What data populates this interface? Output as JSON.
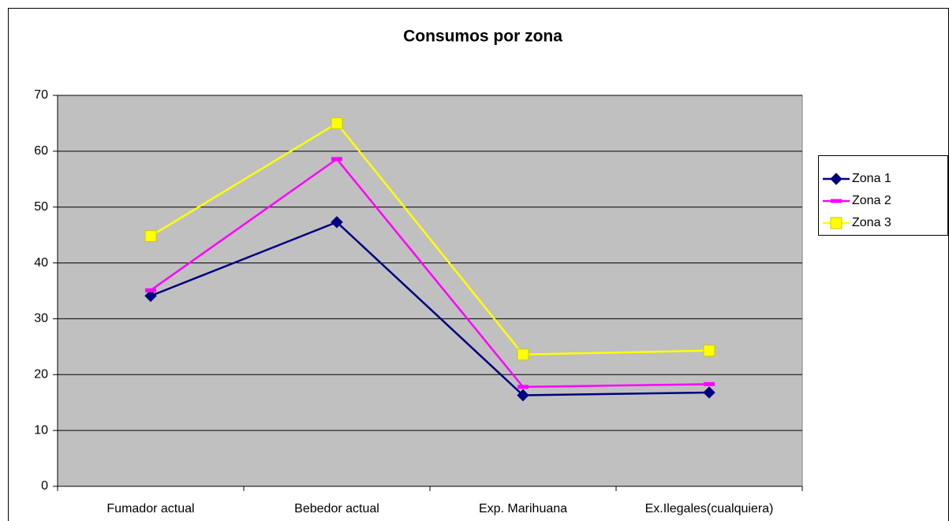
{
  "chart_data": {
    "type": "line",
    "title": "Consumos por zona",
    "categories": [
      "Fumador actual",
      "Bebedor actual",
      "Exp. Marihuana",
      "Ex.Ilegales(cualquiera)"
    ],
    "series": [
      {
        "name": "Zona 1",
        "color": "#000080",
        "marker": "diamond",
        "values": [
          34.1,
          47.3,
          16.3,
          16.8
        ]
      },
      {
        "name": "Zona 2",
        "color": "#ff00ff",
        "marker": "dash",
        "values": [
          35.1,
          58.6,
          17.8,
          18.3
        ]
      },
      {
        "name": "Zona 3",
        "color": "#ffff00",
        "marker": "square",
        "values": [
          44.8,
          65.0,
          23.6,
          24.3
        ]
      }
    ],
    "ylim": [
      0,
      70
    ],
    "yticks": [
      0,
      10,
      20,
      30,
      40,
      50,
      60,
      70
    ],
    "grid": true,
    "legend": "right"
  }
}
